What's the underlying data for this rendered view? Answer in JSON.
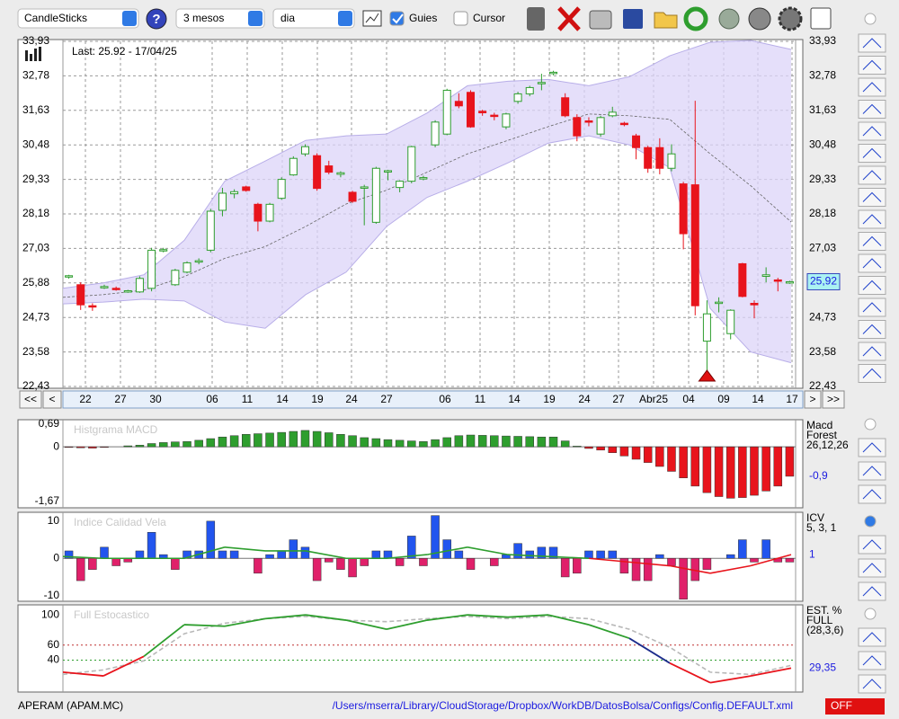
{
  "toolbar": {
    "chart_type": "CandleSticks",
    "help": "?",
    "period": "3 mesos",
    "interval": "dia",
    "guides": {
      "label": "Guies",
      "checked": true
    },
    "cursor": {
      "label": "Cursor",
      "checked": false
    }
  },
  "nav": {
    "first": "<<",
    "prev": "<",
    "next": ">",
    "last": ">>"
  },
  "chart_data": [
    {
      "type": "candlestick",
      "annotation": "Last: 25.92 - 17/04/25",
      "x_labels": [
        "22",
        "27",
        "30",
        "06",
        "11",
        "14",
        "19",
        "24",
        "27",
        "06",
        "11",
        "14",
        "19",
        "24",
        "27",
        "Abr25",
        "04",
        "09",
        "14",
        "17"
      ],
      "ylim": [
        22.43,
        33.93
      ],
      "yticks": [
        {
          "value": 33.93,
          "label": "33,93"
        },
        {
          "value": 32.78,
          "label": "32,78"
        },
        {
          "value": 31.63,
          "label": "31,63"
        },
        {
          "value": 30.48,
          "label": "30,48"
        },
        {
          "value": 29.33,
          "label": "29,33"
        },
        {
          "value": 28.18,
          "label": "28,18"
        },
        {
          "value": 27.03,
          "label": "27,03"
        },
        {
          "value": 25.88,
          "label": "25,88"
        },
        {
          "value": 24.73,
          "label": "24,73"
        },
        {
          "value": 23.58,
          "label": "23,58"
        },
        {
          "value": 22.43,
          "label": "22,43"
        }
      ],
      "grid": true,
      "up_color": "#2e9e2e",
      "down_color": "#e8141c",
      "band_color": "#dcd4f8",
      "band_line_color": "#b8aee8",
      "ma_color": "#666666",
      "open": [
        26.08,
        25.82,
        25.12,
        25.72,
        25.7,
        25.6,
        25.58,
        25.7,
        26.95,
        25.82,
        26.24,
        26.58,
        26.97,
        28.3,
        28.85,
        29.08,
        28.5,
        27.94,
        28.7,
        29.48,
        30.18,
        30.12,
        29.78,
        29.5,
        28.9,
        29.05,
        27.9,
        29.58,
        29.06,
        29.27,
        29.37,
        30.48,
        30.84,
        31.93,
        32.23,
        31.6,
        31.47,
        31.08,
        31.93,
        32.18,
        32.52,
        32.88,
        32.05,
        31.39,
        31.28,
        30.84,
        31.45,
        31.2,
        30.78,
        30.39,
        30.39,
        29.7,
        29.18,
        29.15,
        23.94,
        25.2,
        24.19,
        26.52,
        25.2,
        26.1,
        25.98,
        25.9
      ],
      "high": [
        26.15,
        25.9,
        25.2,
        25.82,
        25.76,
        25.65,
        26.1,
        27.05,
        27.05,
        26.35,
        26.6,
        26.7,
        28.35,
        29.05,
        29.0,
        29.12,
        28.55,
        28.55,
        29.4,
        30.1,
        30.5,
        30.2,
        29.95,
        29.6,
        28.95,
        29.15,
        29.75,
        29.65,
        29.3,
        30.45,
        29.45,
        31.3,
        32.35,
        32.2,
        32.3,
        31.65,
        31.55,
        31.55,
        32.25,
        32.45,
        32.85,
        32.95,
        32.2,
        31.5,
        31.4,
        31.45,
        31.75,
        31.25,
        30.85,
        30.45,
        30.7,
        30.5,
        29.25,
        31.95,
        25.3,
        25.4,
        25.0,
        26.55,
        25.3,
        26.4,
        26.05,
        25.95
      ],
      "low": [
        26.02,
        24.98,
        24.95,
        25.68,
        25.62,
        25.55,
        25.55,
        25.6,
        26.9,
        25.78,
        26.2,
        26.5,
        26.9,
        28.1,
        28.7,
        28.92,
        27.6,
        27.9,
        28.65,
        29.45,
        30.1,
        28.95,
        29.5,
        29.4,
        28.55,
        27.8,
        27.85,
        29.3,
        28.9,
        29.2,
        29.3,
        30.4,
        30.8,
        31.7,
        31.05,
        31.45,
        31.3,
        31.0,
        31.85,
        32.1,
        32.3,
        32.8,
        31.4,
        30.6,
        31.1,
        30.75,
        31.4,
        31.1,
        30.0,
        29.55,
        29.5,
        29.6,
        27.0,
        24.8,
        22.9,
        24.9,
        24.0,
        25.4,
        24.7,
        25.9,
        25.6,
        25.85
      ],
      "close": [
        26.12,
        25.15,
        25.08,
        25.76,
        25.66,
        25.62,
        26.03,
        26.97,
        26.99,
        26.3,
        26.55,
        26.62,
        28.27,
        28.87,
        28.92,
        28.96,
        27.94,
        28.5,
        29.33,
        30.03,
        30.42,
        29.03,
        29.57,
        29.55,
        28.6,
        29.08,
        29.7,
        29.62,
        29.27,
        30.42,
        29.39,
        31.24,
        32.3,
        31.78,
        31.08,
        31.55,
        31.45,
        31.51,
        32.18,
        32.39,
        32.56,
        32.9,
        31.45,
        30.78,
        31.25,
        31.39,
        31.57,
        31.16,
        30.39,
        29.7,
        29.7,
        30.18,
        27.52,
        25.12,
        24.85,
        25.24,
        24.97,
        25.43,
        25.15,
        26.15,
        25.97,
        25.92
      ],
      "bands": {
        "upper": [
          25.7,
          25.88,
          26.15,
          27.3,
          29.27,
          29.94,
          30.63,
          30.78,
          30.84,
          31.54,
          32.45,
          32.6,
          32.66,
          32.45,
          32.75,
          33.45,
          33.9,
          33.96,
          33.66
        ],
        "lower": [
          25.18,
          25.24,
          25.34,
          25.28,
          24.58,
          24.37,
          25.49,
          26.24,
          27.76,
          28.73,
          29.27,
          29.88,
          30.54,
          30.78,
          30.48,
          29.72,
          25.03,
          23.58,
          23.22
        ],
        "middle": [
          25.4,
          25.49,
          25.64,
          26.09,
          26.7,
          27.09,
          27.76,
          28.51,
          28.97,
          29.57,
          30.18,
          30.63,
          31.09,
          31.51,
          31.45,
          31.33,
          30.18,
          29.12,
          27.91
        ]
      },
      "last": {
        "value": 25.92,
        "label": "25,92"
      }
    },
    {
      "type": "bar",
      "title": "Histgrama MACD",
      "legend": [
        "Macd",
        "Forest",
        "26,12,26"
      ],
      "ylim": [
        -1.67,
        0.69
      ],
      "yticks": [
        {
          "value": 0.69,
          "label": "0,69"
        },
        0,
        {
          "value": -1.67,
          "label": "-1,67"
        }
      ],
      "up_color": "#2e9e2e",
      "down_color": "#e8141c",
      "values": [
        -0.02,
        -0.03,
        -0.04,
        -0.02,
        0,
        0.03,
        0.05,
        0.1,
        0.13,
        0.15,
        0.16,
        0.2,
        0.25,
        0.3,
        0.34,
        0.38,
        0.4,
        0.42,
        0.44,
        0.47,
        0.5,
        0.47,
        0.43,
        0.38,
        0.34,
        0.28,
        0.25,
        0.22,
        0.2,
        0.18,
        0.16,
        0.22,
        0.28,
        0.34,
        0.36,
        0.35,
        0.34,
        0.33,
        0.32,
        0.31,
        0.3,
        0.3,
        0.18,
        0.02,
        -0.05,
        -0.1,
        -0.18,
        -0.28,
        -0.38,
        -0.48,
        -0.6,
        -0.75,
        -0.95,
        -1.2,
        -1.4,
        -1.52,
        -1.57,
        -1.55,
        -1.48,
        -1.35,
        -1.2,
        -0.9
      ],
      "last": {
        "value": -0.9,
        "label": "-0,9"
      }
    },
    {
      "type": "bar_line",
      "title": "Indice Calidad Vela",
      "legend": [
        "ICV",
        "5, 3, 1"
      ],
      "ylim": [
        -11.3,
        11.9
      ],
      "yticks": [
        10,
        0,
        -10
      ],
      "up_color": "#2255ee",
      "down_color": "#e0206a",
      "line_up_color": "#2e9e2e",
      "line_down_color": "#e8141c",
      "values": [
        2,
        -6,
        -3,
        3,
        -2,
        -1,
        2,
        7,
        1,
        -3,
        2,
        2,
        10,
        2,
        2,
        0,
        -4,
        1,
        2,
        5,
        3,
        -6,
        -1,
        -3,
        -5,
        -2,
        2,
        2,
        -2,
        6,
        -2,
        11.5,
        5,
        2,
        -3,
        0,
        -2,
        1,
        4,
        2,
        3,
        3,
        -5,
        -4,
        2,
        2,
        2,
        -4,
        -6,
        -6,
        1,
        -2,
        -11,
        -6,
        -3,
        0,
        1,
        5,
        -1,
        5,
        -1,
        -1
      ],
      "signal": [
        0.5,
        0,
        0,
        0,
        3,
        2,
        2,
        0,
        0,
        1,
        3,
        1,
        0.5,
        0,
        -1,
        -2,
        -4,
        -2,
        1
      ],
      "last": 1
    },
    {
      "type": "line",
      "title": "Full Estocastico",
      "legend": [
        "EST. %",
        "FULL",
        "(28,3,6)"
      ],
      "ylim": [
        0,
        105
      ],
      "yticks": [
        100,
        60,
        40
      ],
      "guides": [
        {
          "value": 60,
          "color": "#c03030"
        },
        {
          "value": 40,
          "color": "#2e9e2e"
        }
      ],
      "high_color": "#2e9e2e",
      "mid_color": "#1c2c8c",
      "low_color": "#e8141c",
      "d_color": "#b8b8b8",
      "k": [
        24,
        19,
        45,
        87,
        85,
        95,
        100,
        93,
        81,
        93,
        100,
        97,
        100,
        87,
        69,
        36,
        10,
        19,
        29.35
      ],
      "d": [
        21,
        27,
        39,
        75,
        89,
        95,
        98,
        93,
        91,
        95,
        98,
        95,
        98,
        95,
        81,
        57,
        24,
        21,
        33
      ],
      "last": {
        "value": 29.35,
        "label": "29,35"
      }
    }
  ],
  "footer": {
    "ticker": "APERAM (APAM.MC)",
    "path": "/Users/mserra/Library/CloudStorage/Dropbox/WorkDB/DatosBolsa/Configs/Config.DEFAULT.xml",
    "status": "OFF"
  }
}
